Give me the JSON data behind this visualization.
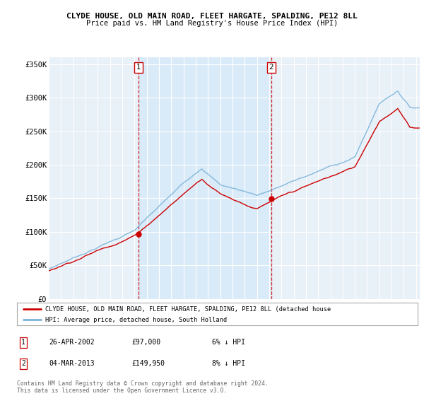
{
  "title1": "CLYDE HOUSE, OLD MAIN ROAD, FLEET HARGATE, SPALDING, PE12 8LL",
  "title2": "Price paid vs. HM Land Registry's House Price Index (HPI)",
  "ylabel_ticks": [
    "£0",
    "£50K",
    "£100K",
    "£150K",
    "£200K",
    "£250K",
    "£300K",
    "£350K"
  ],
  "ytick_values": [
    0,
    50000,
    100000,
    150000,
    200000,
    250000,
    300000,
    350000
  ],
  "ylim": [
    0,
    360000
  ],
  "xlim_start": 1995.0,
  "xlim_end": 2025.3,
  "background_color": "#cfe0f0",
  "highlight_color": "#d8e8f5",
  "plot_bg": "#e8f0f8",
  "grid_color": "#ffffff",
  "hpi_color": "#7ab3d8",
  "price_color": "#cc0000",
  "sale1_date": 2002.32,
  "sale1_price": 97000,
  "sale2_date": 2013.17,
  "sale2_price": 149950,
  "legend_label1": "CLYDE HOUSE, OLD MAIN ROAD, FLEET HARGATE, SPALDING, PE12 8LL (detached house",
  "legend_label2": "HPI: Average price, detached house, South Holland",
  "note1_date": "26-APR-2002",
  "note1_price": "£97,000",
  "note1_hpi": "6% ↓ HPI",
  "note2_date": "04-MAR-2013",
  "note2_price": "£149,950",
  "note2_hpi": "8% ↓ HPI",
  "footer": "Contains HM Land Registry data © Crown copyright and database right 2024.\nThis data is licensed under the Open Government Licence v3.0."
}
